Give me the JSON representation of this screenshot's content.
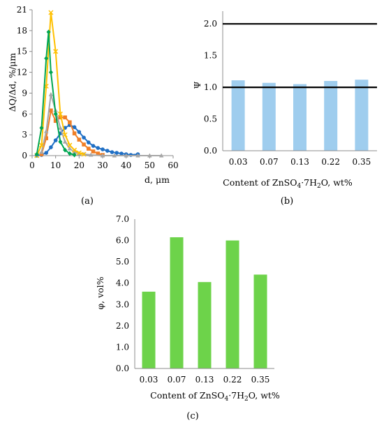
{
  "panels": {
    "a": "(a)",
    "b": "(b)",
    "c": "(c)"
  },
  "chart_data": [
    {
      "type": "line",
      "panel": "a",
      "xlabel": "d, μm",
      "ylabel": "ΔQ/Δd, %/μm",
      "xlim": [
        0,
        60
      ],
      "ylim": [
        0,
        21
      ],
      "xticks": [
        "0",
        "10",
        "20",
        "30",
        "40",
        "50",
        "60"
      ],
      "yticks": [
        "0",
        "3",
        "6",
        "9",
        "12",
        "15",
        "18",
        "21"
      ],
      "grid": false,
      "legend": "none",
      "series": [
        {
          "color": "#1f6fc5",
          "marker": "circle",
          "x": [
            2,
            4,
            6,
            8,
            10,
            12,
            14,
            16,
            18,
            20,
            22,
            24,
            26,
            28,
            30,
            32,
            34,
            36,
            38,
            40,
            42,
            45
          ],
          "y": [
            0,
            0.1,
            0.4,
            1.2,
            2.2,
            3.2,
            4.0,
            4.4,
            4.1,
            3.4,
            2.6,
            1.9,
            1.4,
            1.1,
            0.9,
            0.7,
            0.5,
            0.4,
            0.3,
            0.2,
            0.1,
            0.2
          ]
        },
        {
          "color": "#f07f27",
          "marker": "square",
          "x": [
            4,
            6,
            8,
            10,
            12,
            14,
            16,
            18,
            20,
            22,
            24,
            26,
            28,
            30
          ],
          "y": [
            0.2,
            2.5,
            6.5,
            5.0,
            5.5,
            5.5,
            4.8,
            3.2,
            2.3,
            1.6,
            1.0,
            0.6,
            0.3,
            0.1
          ]
        },
        {
          "color": "#a6a6a6",
          "marker": "triangle",
          "x": [
            4,
            6,
            8,
            10,
            12,
            14,
            16,
            18,
            20,
            22,
            25,
            30,
            35,
            40,
            45,
            50,
            55
          ],
          "y": [
            0.5,
            3.5,
            8.8,
            6.5,
            4.0,
            2.0,
            1.0,
            0.5,
            0.3,
            0.2,
            0.1,
            0,
            0,
            0,
            0,
            0,
            0
          ]
        },
        {
          "color": "#ffc000",
          "marker": "cross",
          "x": [
            2,
            4,
            6,
            8,
            10,
            12,
            14,
            16,
            18,
            20,
            22
          ],
          "y": [
            0,
            1.5,
            10.0,
            20.6,
            15.0,
            6.0,
            3.0,
            1.5,
            0.8,
            0.4,
            0.2
          ]
        },
        {
          "color": "#00a651",
          "marker": "diamond",
          "x": [
            2,
            4,
            6,
            7,
            8,
            10,
            12,
            14,
            16,
            18
          ],
          "y": [
            0.2,
            4.0,
            14.0,
            17.8,
            12.0,
            6.0,
            2.0,
            0.8,
            0.3,
            0.1
          ]
        }
      ]
    },
    {
      "type": "bar",
      "panel": "b",
      "categories": [
        "0.03",
        "0.07",
        "0.13",
        "0.22",
        "0.35"
      ],
      "values": [
        1.11,
        1.07,
        1.05,
        1.1,
        1.12
      ],
      "color": "#9fcdee",
      "ylabel": "Ψ",
      "xlabel_parts": [
        "Content of ZnSO",
        "4",
        "·7H",
        "2",
        "O, wt%"
      ],
      "ylim": [
        0,
        2.2
      ],
      "yticks": [
        "0.0",
        "0.5",
        "1.0",
        "1.5",
        "2.0"
      ],
      "reference_lines": [
        1.0,
        2.0
      ],
      "grid": false
    },
    {
      "type": "bar",
      "panel": "c",
      "categories": [
        "0.03",
        "0.07",
        "0.13",
        "0.22",
        "0.35"
      ],
      "values": [
        3.6,
        6.15,
        4.05,
        6.0,
        4.4
      ],
      "color": "#6dd34a",
      "ylabel": "φ, vol%",
      "xlabel_parts": [
        "Content of ZnSO",
        "4",
        "·7H",
        "2",
        "O, wt%"
      ],
      "ylim": [
        0,
        7.0
      ],
      "yticks": [
        "0.0",
        "1.0",
        "2.0",
        "3.0",
        "4.0",
        "5.0",
        "6.0",
        "7.0"
      ],
      "grid": false
    }
  ]
}
